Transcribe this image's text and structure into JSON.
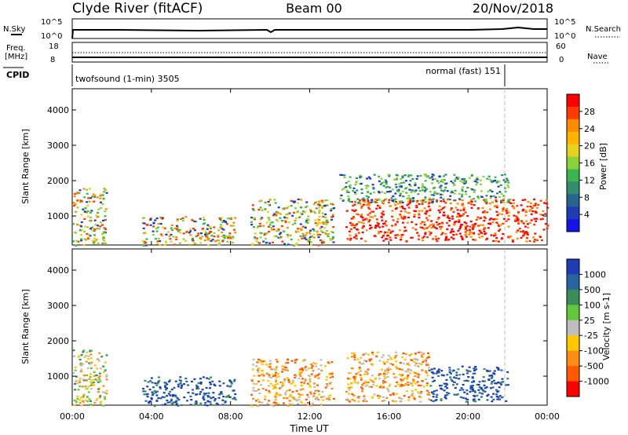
{
  "header": {
    "station": "Clyde River (fitACF)",
    "beam": "Beam 00",
    "date": "20/Nov/2018"
  },
  "top_panels": {
    "nsky_label": "N.Sky",
    "nsky_ticks": [
      "10^5",
      "10^0"
    ],
    "nsearch_label": "N.Search",
    "nsearch_ticks": [
      "10^5",
      "10^0"
    ],
    "freq_label": "Freq.",
    "freq_unit": "[MHz]",
    "freq_ticks": [
      "18",
      "8"
    ],
    "nave_label": "Nave",
    "nave_ticks": [
      "60",
      "0"
    ],
    "cpid_label": "CPID",
    "cpid_segments": [
      {
        "name": "twofsound (1-min) 3505",
        "start_hour": 0,
        "end_hour": 22
      },
      {
        "name": "normal (fast) 151",
        "start_hour": 22,
        "end_hour": 24
      }
    ]
  },
  "chart_data": [
    {
      "type": "heatmap",
      "parameter": "power",
      "ylabel": "Slant Range [km]",
      "yticks": [
        1000,
        2000,
        3000,
        4000
      ],
      "ylim": [
        180,
        4600
      ],
      "xlim": [
        0,
        24
      ],
      "colorbar": {
        "label": "Power [dB]",
        "ticks": [
          "28",
          "24",
          "20",
          "16",
          "12",
          "8",
          "4"
        ],
        "colors": [
          "#ff0000",
          "#ff3c00",
          "#ff8c00",
          "#ffb300",
          "#e6d21e",
          "#8cd23c",
          "#3cb450",
          "#328c6e",
          "#286490",
          "#1e3cb4",
          "#1414e6"
        ]
      },
      "echo_regions": [
        {
          "x0": 0.0,
          "x1": 1.7,
          "y0": 180,
          "y1": 1800,
          "level": "mixed"
        },
        {
          "x0": 3.5,
          "x1": 8.2,
          "y0": 180,
          "y1": 1000,
          "level": "mixed"
        },
        {
          "x0": 9.0,
          "x1": 13.2,
          "y0": 180,
          "y1": 1500,
          "level": "mixed"
        },
        {
          "x0": 13.8,
          "x1": 24.0,
          "y0": 300,
          "y1": 1500,
          "level": "high"
        },
        {
          "x0": 13.5,
          "x1": 22.0,
          "y0": 1400,
          "y1": 2200,
          "level": "low"
        }
      ]
    },
    {
      "type": "heatmap",
      "parameter": "velocity",
      "ylabel": "Slant Range [km]",
      "yticks": [
        1000,
        2000,
        3000,
        4000
      ],
      "ylim": [
        180,
        4600
      ],
      "xlim": [
        0,
        24
      ],
      "xlabel": "Time UT",
      "xticks": [
        "00:00",
        "04:00",
        "08:00",
        "12:00",
        "16:00",
        "20:00",
        "00:00"
      ],
      "colorbar": {
        "label": "Velocity [m s-1]",
        "ticks": [
          "1000",
          "500",
          "100",
          "25",
          "-25",
          "-100",
          "-500",
          "-1000"
        ],
        "colors": [
          "#1e3cb4",
          "#2864a0",
          "#3c8c5a",
          "#64c83c",
          "#bebebe",
          "#ffc800",
          "#ff8c14",
          "#ff5a00",
          "#ff0000"
        ]
      },
      "echo_regions": [
        {
          "x0": 0.0,
          "x1": 1.7,
          "y0": 180,
          "y1": 1800,
          "level": "mixed"
        },
        {
          "x0": 3.5,
          "x1": 8.2,
          "y0": 180,
          "y1": 1000,
          "level": "positive"
        },
        {
          "x0": 9.0,
          "x1": 13.2,
          "y0": 180,
          "y1": 1500,
          "level": "negative"
        },
        {
          "x0": 13.8,
          "x1": 18.0,
          "y0": 300,
          "y1": 1700,
          "level": "negative"
        },
        {
          "x0": 18.0,
          "x1": 22.0,
          "y0": 300,
          "y1": 1300,
          "level": "positive"
        }
      ]
    }
  ]
}
